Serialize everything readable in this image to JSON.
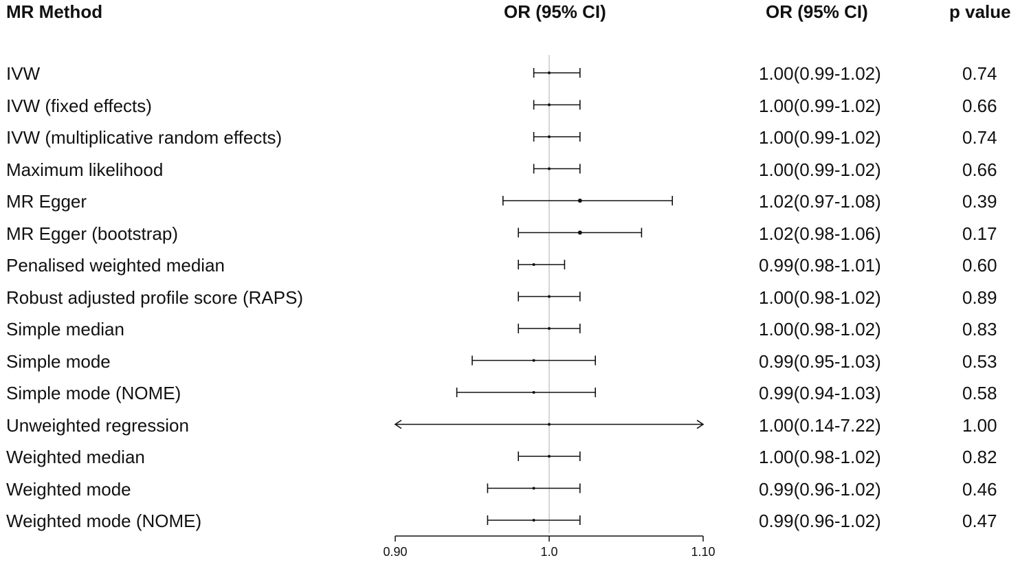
{
  "headers": {
    "method": "MR Method",
    "plot": "OR (95% CI)",
    "ci": "OR (95% CI)",
    "p": "p value"
  },
  "rows": [
    {
      "method": "IVW",
      "ci_text": "1.00(0.99-1.02)",
      "p": "0.74"
    },
    {
      "method": "IVW (fixed effects)",
      "ci_text": "1.00(0.99-1.02)",
      "p": "0.66"
    },
    {
      "method": "IVW (multiplicative random effects)",
      "ci_text": "1.00(0.99-1.02)",
      "p": "0.74"
    },
    {
      "method": "Maximum likelihood",
      "ci_text": "1.00(0.99-1.02)",
      "p": "0.66"
    },
    {
      "method": "MR Egger",
      "ci_text": "1.02(0.97-1.08)",
      "p": "0.39"
    },
    {
      "method": "MR Egger (bootstrap)",
      "ci_text": "1.02(0.98-1.06)",
      "p": "0.17"
    },
    {
      "method": "Penalised weighted median",
      "ci_text": "0.99(0.98-1.01)",
      "p": "0.60"
    },
    {
      "method": "Robust adjusted profile score (RAPS)",
      "ci_text": "1.00(0.98-1.02)",
      "p": "0.89"
    },
    {
      "method": "Simple median",
      "ci_text": "1.00(0.98-1.02)",
      "p": "0.83"
    },
    {
      "method": "Simple mode",
      "ci_text": "0.99(0.95-1.03)",
      "p": "0.53"
    },
    {
      "method": "Simple mode (NOME)",
      "ci_text": "0.99(0.94-1.03)",
      "p": "0.58"
    },
    {
      "method": "Unweighted regression",
      "ci_text": "1.00(0.14-7.22)",
      "p": "1.00"
    },
    {
      "method": "Weighted median",
      "ci_text": "1.00(0.98-1.02)",
      "p": "0.82"
    },
    {
      "method": "Weighted mode",
      "ci_text": "0.99(0.96-1.02)",
      "p": "0.46"
    },
    {
      "method": "Weighted mode (NOME)",
      "ci_text": "0.99(0.96-1.02)",
      "p": "0.47"
    }
  ],
  "chart_data": {
    "type": "forest",
    "title": "OR (95% CI)",
    "xlim": [
      0.9,
      1.1
    ],
    "reference_line": 1.0,
    "tick_labels": [
      "0.90",
      "1.0",
      "1.10"
    ],
    "tick_values": [
      0.9,
      1.0,
      1.1
    ],
    "colors": {
      "line": "#111111",
      "reference": "#c8c8c8"
    },
    "estimates": [
      {
        "label": "IVW",
        "or": 1.0,
        "lo": 0.99,
        "hi": 1.02
      },
      {
        "label": "IVW (fixed effects)",
        "or": 1.0,
        "lo": 0.99,
        "hi": 1.02
      },
      {
        "label": "IVW (multiplicative random effects)",
        "or": 1.0,
        "lo": 0.99,
        "hi": 1.02
      },
      {
        "label": "Maximum likelihood",
        "or": 1.0,
        "lo": 0.99,
        "hi": 1.02
      },
      {
        "label": "MR Egger",
        "or": 1.02,
        "lo": 0.97,
        "hi": 1.08
      },
      {
        "label": "MR Egger (bootstrap)",
        "or": 1.02,
        "lo": 0.98,
        "hi": 1.06
      },
      {
        "label": "Penalised weighted median",
        "or": 0.99,
        "lo": 0.98,
        "hi": 1.01
      },
      {
        "label": "Robust adjusted profile score (RAPS)",
        "or": 1.0,
        "lo": 0.98,
        "hi": 1.02
      },
      {
        "label": "Simple median",
        "or": 1.0,
        "lo": 0.98,
        "hi": 1.02
      },
      {
        "label": "Simple mode",
        "or": 0.99,
        "lo": 0.95,
        "hi": 1.03
      },
      {
        "label": "Simple mode (NOME)",
        "or": 0.99,
        "lo": 0.94,
        "hi": 1.03
      },
      {
        "label": "Unweighted regression",
        "or": 1.0,
        "lo": 0.14,
        "hi": 7.22
      },
      {
        "label": "Weighted median",
        "or": 1.0,
        "lo": 0.98,
        "hi": 1.02
      },
      {
        "label": "Weighted mode",
        "or": 0.99,
        "lo": 0.96,
        "hi": 1.02
      },
      {
        "label": "Weighted mode (NOME)",
        "or": 0.99,
        "lo": 0.96,
        "hi": 1.02
      }
    ]
  }
}
